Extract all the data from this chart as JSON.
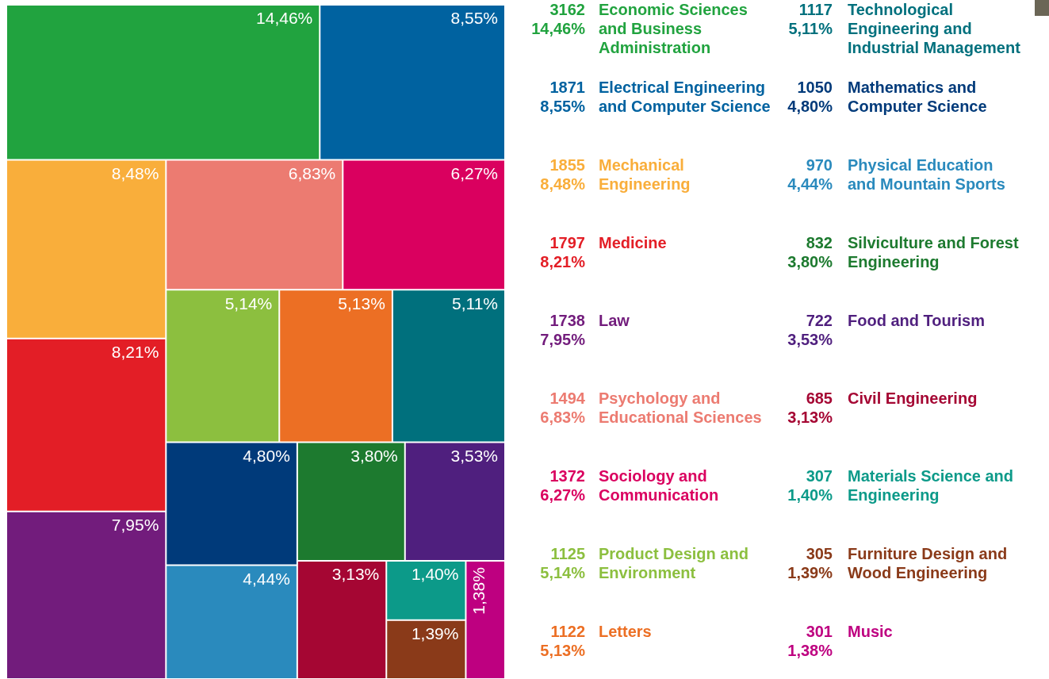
{
  "chart_data": {
    "type": "other",
    "categories": [
      "Economic Sciences and Business Administration",
      "Electrical Engineering and Computer Science",
      "Mechanical Engineering",
      "Medicine",
      "Law",
      "Psychology and Educational Sciences",
      "Sociology and Communication",
      "Product Design and Environment",
      "Letters",
      "Technological Engineering and Industrial Management",
      "Mathematics and Computer Science",
      "Physical Education and Mountain Sports",
      "Silviculture and Forest Engineering",
      "Food and Tourism",
      "Civil Engineering",
      "Materials Science and Engineering",
      "Furniture Design and Wood Engineering",
      "Music"
    ],
    "series": [
      {
        "values": [
          14.46,
          8.55,
          8.48,
          8.21,
          7.95,
          6.83,
          6.27,
          5.14,
          5.13,
          5.11,
          4.8,
          4.44,
          3.8,
          3.53,
          3.13,
          1.4,
          1.39,
          1.38
        ],
        "value_labels": [
          "14,46%",
          "8,55%",
          "8,48%",
          "8,21%",
          "7,95%",
          "6,83%",
          "6,27%",
          "5,14%",
          "5,13%",
          "5,11%",
          "4,80%",
          "4,44%",
          "3,80%",
          "3,53%",
          "3,13%",
          "1,40%",
          "1,39%",
          "1,38%"
        ]
      },
      {
        "values": [
          3162,
          1871,
          1855,
          1797,
          1738,
          1494,
          1372,
          1125,
          1122,
          1117,
          1050,
          970,
          832,
          722,
          685,
          307,
          305,
          301
        ]
      }
    ],
    "data_labels": true,
    "colors": [
      "#21a33f",
      "#0062a0",
      "#f9ae3b",
      "#e31e26",
      "#721c7c",
      "#ec7b71",
      "#da005f",
      "#8cbf3f",
      "#ec6f24",
      "#00707d",
      "#003a7a",
      "#2a8abd",
      "#1d7a2f",
      "#4f1f7e",
      "#a50633",
      "#0c9a89",
      "#8a3a19",
      "#be0080"
    ]
  }
}
